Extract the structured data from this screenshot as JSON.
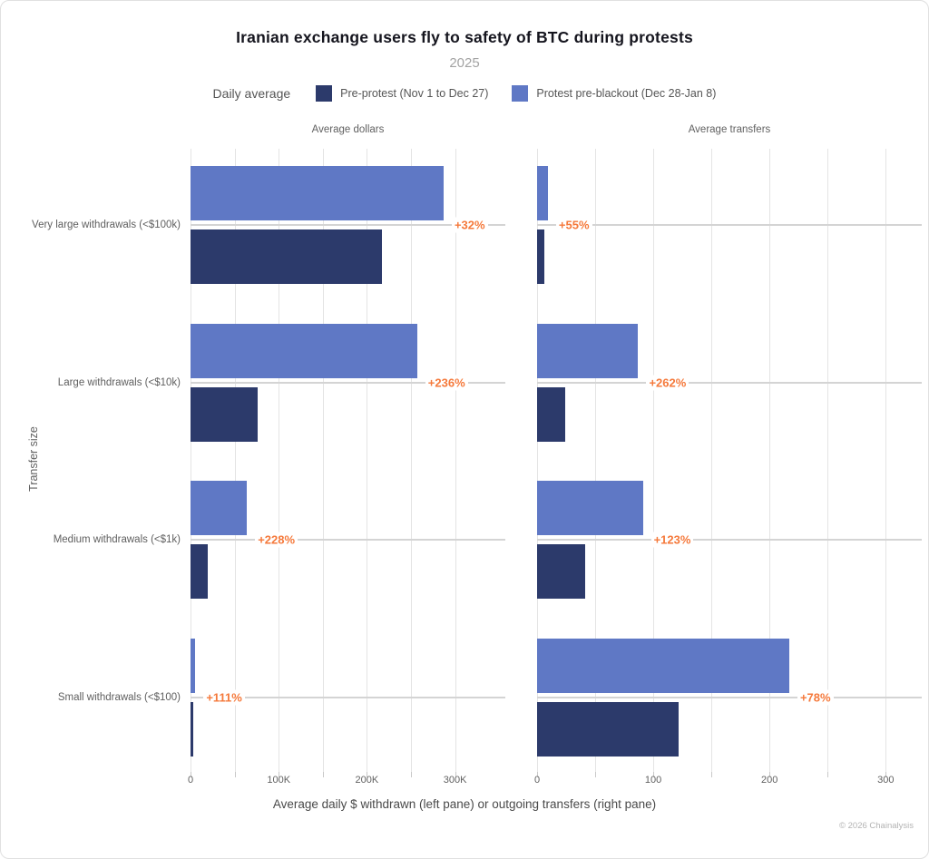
{
  "title": "Iranian exchange users fly to safety of BTC during protests",
  "subtitle": "2025",
  "legend": {
    "label": "Daily average",
    "series": [
      {
        "name": "Pre-protest (Nov 1 to Dec 27)",
        "color": "#2c3a6b"
      },
      {
        "name": "Protest pre-blackout (Dec 28-Jan 8)",
        "color": "#5f78c5"
      }
    ]
  },
  "footer": "© 2026 Chainalysis",
  "chart_data": {
    "type": "bar",
    "orientation": "horizontal",
    "grid": true,
    "legend_position": "top",
    "ylabel": "Transfer size",
    "xlabel": "Average daily $ withdrawn (left pane) or outgoing transfers (right pane)",
    "categories": [
      "Very large withdrawals (<$100k)",
      "Large withdrawals (<$10k)",
      "Medium withdrawals (<$1k)",
      "Small withdrawals (<$100)"
    ],
    "series_names": [
      "Pre-protest (Nov 1 to Dec 27)",
      "Protest pre-blackout (Dec 28-Jan 8)"
    ],
    "colors": {
      "pre_protest": "#2c3a6b",
      "protest": "#5f78c5",
      "annotation": "#f5793b"
    },
    "panes": [
      {
        "title": "Average dollars",
        "xlim": [
          0,
          357000
        ],
        "grid_step": 50000,
        "grid_max": 300000,
        "ticks": [
          {
            "value": 0,
            "label": "0"
          },
          {
            "value": 100000,
            "label": "100K"
          },
          {
            "value": 200000,
            "label": "200K"
          },
          {
            "value": 300000,
            "label": "300K"
          }
        ],
        "rows": [
          {
            "category": "Very large withdrawals (<$100k)",
            "pre_protest": 217000,
            "protest": 287000,
            "change": "+32%"
          },
          {
            "category": "Large withdrawals (<$10k)",
            "pre_protest": 76000,
            "protest": 257000,
            "change": "+236%"
          },
          {
            "category": "Medium withdrawals (<$1k)",
            "pre_protest": 19500,
            "protest": 64000,
            "change": "+228%"
          },
          {
            "category": "Small withdrawals (<$100)",
            "pre_protest": 2600,
            "protest": 5500,
            "change": "+111%"
          }
        ]
      },
      {
        "title": "Average transfers",
        "xlim": [
          0,
          331
        ],
        "grid_step": 50,
        "grid_max": 300,
        "ticks": [
          {
            "value": 0,
            "label": "0"
          },
          {
            "value": 100,
            "label": "100"
          },
          {
            "value": 200,
            "label": "200"
          },
          {
            "value": 300,
            "label": "300"
          }
        ],
        "rows": [
          {
            "category": "Very large withdrawals (<$100k)",
            "pre_protest": 6,
            "protest": 9.3,
            "change": "+55%"
          },
          {
            "category": "Large withdrawals (<$10k)",
            "pre_protest": 24,
            "protest": 87,
            "change": "+262%"
          },
          {
            "category": "Medium withdrawals (<$1k)",
            "pre_protest": 41,
            "protest": 91,
            "change": "+123%"
          },
          {
            "category": "Small withdrawals (<$100)",
            "pre_protest": 122,
            "protest": 217,
            "change": "+78%"
          }
        ]
      }
    ]
  }
}
